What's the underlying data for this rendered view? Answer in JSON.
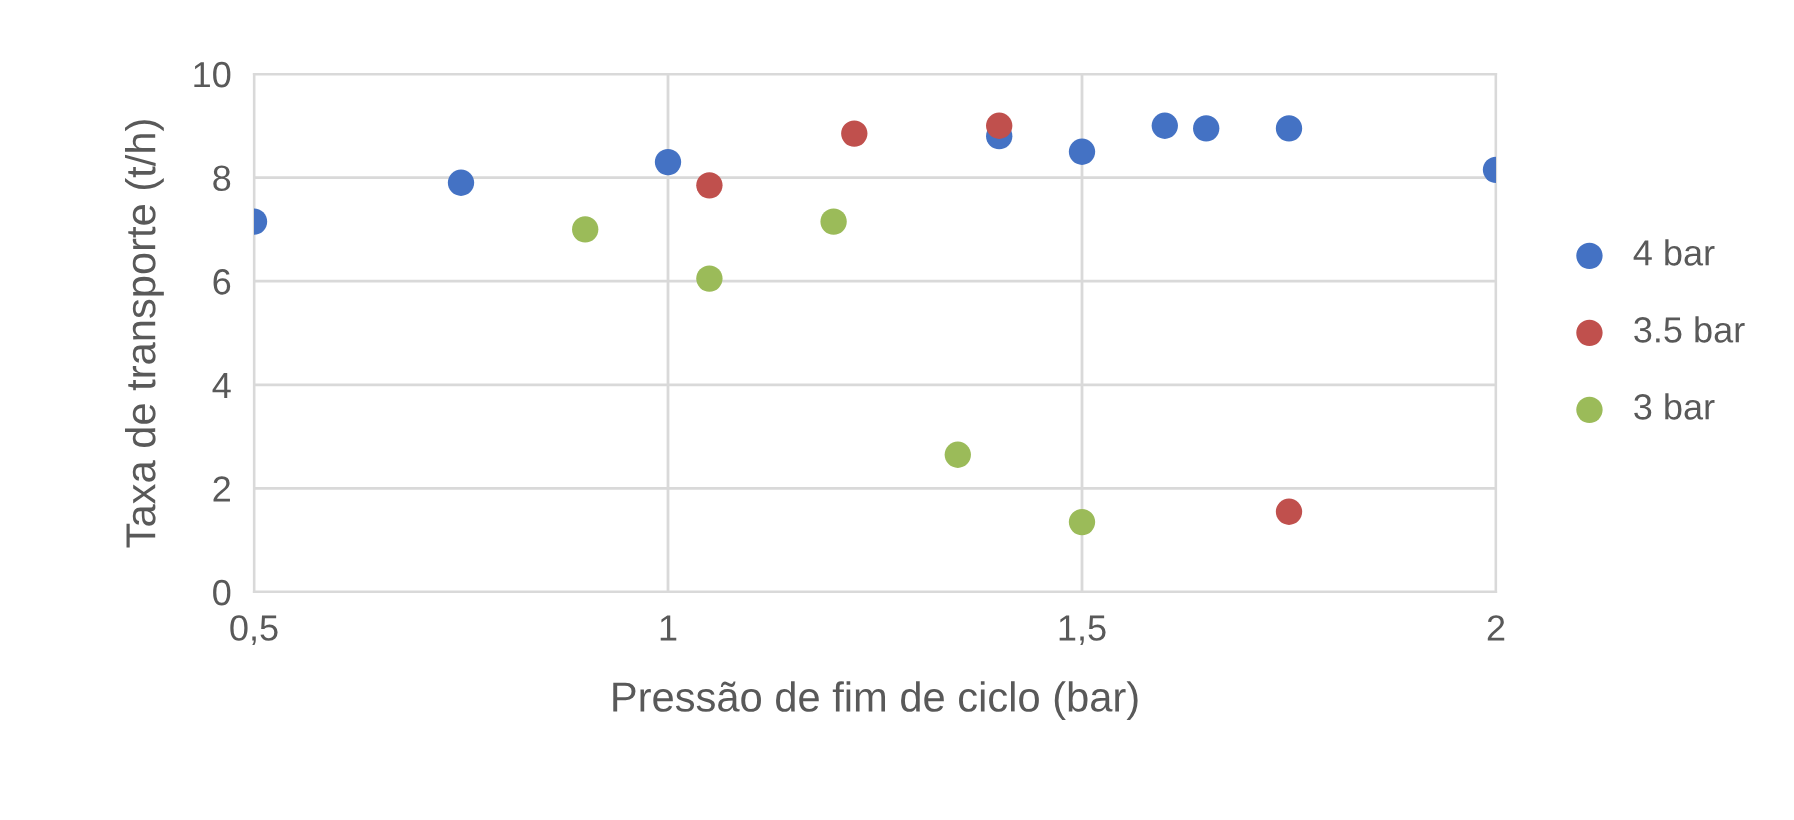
{
  "chart_data": {
    "type": "scatter",
    "xlabel": "Pressão de fim de ciclo (bar)",
    "ylabel": "Taxa de transporte (t/h)",
    "xlim": [
      0.5,
      2
    ],
    "ylim": [
      0,
      10
    ],
    "xticks": [
      {
        "value": 0.5,
        "label": "0,5"
      },
      1,
      {
        "value": 1.5,
        "label": "1,5"
      },
      2
    ],
    "yticks": [
      0,
      2,
      4,
      6,
      8,
      10
    ],
    "grid": true,
    "legend": "right",
    "marker": "circle",
    "series": [
      {
        "name": "4 bar",
        "color": "#4472c4",
        "x": [
          0.5,
          0.75,
          1.0,
          1.4,
          1.5,
          1.6,
          1.65,
          1.75,
          2.0
        ],
        "values": [
          7.15,
          7.9,
          8.3,
          8.8,
          8.5,
          9.0,
          8.95,
          8.95,
          8.15
        ]
      },
      {
        "name": "3.5 bar",
        "color": "#c0504d",
        "x": [
          1.05,
          1.225,
          1.4,
          1.75
        ],
        "values": [
          7.85,
          8.85,
          9.0,
          1.55
        ]
      },
      {
        "name": "3 bar",
        "color": "#9bbb59",
        "x": [
          0.9,
          1.05,
          1.2,
          1.35,
          1.5
        ],
        "values": [
          7.0,
          6.05,
          7.15,
          2.65,
          1.35
        ]
      }
    ]
  }
}
